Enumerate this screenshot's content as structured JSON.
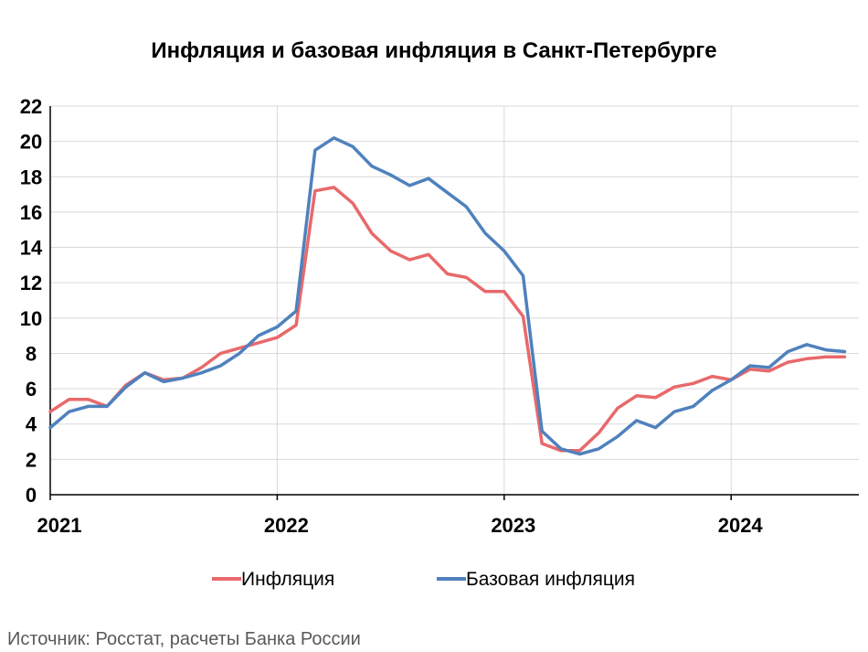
{
  "chart_data": {
    "type": "line",
    "title": "Инфляция и базовая инфляция в Санкт-Петербурге",
    "xlabel": "",
    "ylabel": "",
    "ylim": [
      0,
      22
    ],
    "yticks": [
      0,
      2,
      4,
      6,
      8,
      10,
      12,
      14,
      16,
      18,
      20,
      22
    ],
    "x_tick_labels": [
      "2021",
      "2022",
      "2023",
      "2024"
    ],
    "x": [
      "2021-01",
      "2021-02",
      "2021-03",
      "2021-04",
      "2021-05",
      "2021-06",
      "2021-07",
      "2021-08",
      "2021-09",
      "2021-10",
      "2021-11",
      "2021-12",
      "2022-01",
      "2022-02",
      "2022-03",
      "2022-04",
      "2022-05",
      "2022-06",
      "2022-07",
      "2022-08",
      "2022-09",
      "2022-10",
      "2022-11",
      "2022-12",
      "2023-01",
      "2023-02",
      "2023-03",
      "2023-04",
      "2023-05",
      "2023-06",
      "2023-07",
      "2023-08",
      "2023-09",
      "2023-10",
      "2023-11",
      "2023-12",
      "2024-01",
      "2024-02",
      "2024-03",
      "2024-04",
      "2024-05",
      "2024-06",
      "2024-07"
    ],
    "grid": true,
    "legend_position": "bottom",
    "series": [
      {
        "name": "Инфляция",
        "color": "#E8696B",
        "values": [
          4.7,
          5.4,
          5.4,
          5.0,
          6.2,
          6.9,
          6.5,
          6.6,
          7.2,
          8.0,
          8.3,
          8.6,
          8.9,
          9.6,
          17.2,
          17.4,
          16.5,
          14.8,
          13.8,
          13.3,
          13.6,
          12.5,
          12.3,
          11.5,
          11.5,
          10.1,
          2.9,
          2.5,
          2.5,
          3.5,
          4.9,
          5.6,
          5.5,
          6.1,
          6.3,
          6.7,
          6.5,
          7.1,
          7.0,
          7.5,
          7.7,
          7.8,
          7.8
        ]
      },
      {
        "name": "Базовая инфляция",
        "color": "#4F81BD",
        "values": [
          3.8,
          4.7,
          5.0,
          5.0,
          6.1,
          6.9,
          6.4,
          6.6,
          6.9,
          7.3,
          8.0,
          9.0,
          9.5,
          10.4,
          19.5,
          20.2,
          19.7,
          18.6,
          18.1,
          17.5,
          17.9,
          17.1,
          16.3,
          14.8,
          13.8,
          12.4,
          3.6,
          2.6,
          2.3,
          2.6,
          3.3,
          4.2,
          3.8,
          4.7,
          5.0,
          5.9,
          6.5,
          7.3,
          7.2,
          8.1,
          8.5,
          8.2,
          8.1
        ]
      }
    ]
  },
  "source": "Источник: Росстат, расчеты Банка России"
}
